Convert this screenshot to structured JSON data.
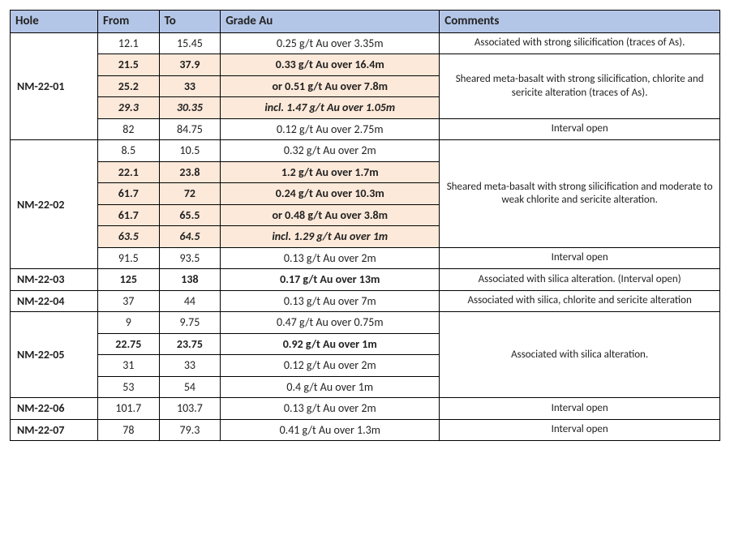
{
  "headers": {
    "hole": "Hole",
    "from": "From",
    "to": "To",
    "grade": "Grade Au",
    "comments": "Comments"
  },
  "holes": {
    "nm2201": "NM-22-01",
    "nm2202": "NM-22-02",
    "nm2203": "NM-22-03",
    "nm2204": "NM-22-04",
    "nm2205": "NM-22-05",
    "nm2206": "NM-22-06",
    "nm2207": "NM-22-07"
  },
  "r": {
    "a1": {
      "from": "12.1",
      "to": "15.45",
      "grade": "0.25 g/t Au over 3.35m"
    },
    "a2": {
      "from": "21.5",
      "to": "37.9",
      "grade": "0.33 g/t Au over 16.4m"
    },
    "a3": {
      "from": "25.2",
      "to": "33",
      "grade": "or 0.51 g/t Au over 7.8m"
    },
    "a4": {
      "from": "29.3",
      "to": "30.35",
      "grade": "incl. 1.47 g/t Au over 1.05m"
    },
    "a5": {
      "from": "82",
      "to": "84.75",
      "grade": "0.12 g/t Au over 2.75m"
    },
    "b1": {
      "from": "8.5",
      "to": "10.5",
      "grade": "0.32 g/t Au over 2m"
    },
    "b2": {
      "from": "22.1",
      "to": "23.8",
      "grade": "1.2 g/t Au over 1.7m"
    },
    "b3": {
      "from": "61.7",
      "to": "72",
      "grade": "0.24 g/t Au over 10.3m"
    },
    "b4": {
      "from": "61.7",
      "to": "65.5",
      "grade": "or 0.48 g/t Au over 3.8m"
    },
    "b5": {
      "from": "63.5",
      "to": "64.5",
      "grade": "incl. 1.29 g/t Au over 1m"
    },
    "b6": {
      "from": "91.5",
      "to": "93.5",
      "grade": "0.13 g/t Au over 2m"
    },
    "c1": {
      "from": "125",
      "to": "138",
      "grade": "0.17 g/t Au over 13m"
    },
    "d1": {
      "from": "37",
      "to": "44",
      "grade": "0.13 g/t Au over 7m"
    },
    "e1": {
      "from": "9",
      "to": "9.75",
      "grade": "0.47 g/t Au over 0.75m"
    },
    "e2": {
      "from": "22.75",
      "to": "23.75",
      "grade": "0.92 g/t Au over 1m"
    },
    "e3": {
      "from": "31",
      "to": "33",
      "grade": "0.12 g/t Au over 2m"
    },
    "e4": {
      "from": "53",
      "to": "54",
      "grade": "0.4 g/t Au over 1m"
    },
    "f1": {
      "from": "101.7",
      "to": "103.7",
      "grade": "0.13 g/t Au over 2m"
    },
    "g1": {
      "from": "78",
      "to": "79.3",
      "grade": "0.41 g/t Au over 1.3m"
    }
  },
  "comments": {
    "a1": "Associated with strong silicification (traces of As).",
    "a2": "Sheared meta-basalt with strong silicification, chlorite and sericite alteration (traces of As).",
    "a3": "Interval open",
    "b1": "Sheared meta-basalt with strong silicification and moderate to weak chlorite and sericite alteration.",
    "b2": "Interval open",
    "c1": "Associated with silica alteration. (Interval open)",
    "d1": "Associated with silica, chlorite and sericite alteration",
    "e1": "Associated with silica alteration.",
    "f1": "Interval open",
    "g1": "Interval open"
  }
}
